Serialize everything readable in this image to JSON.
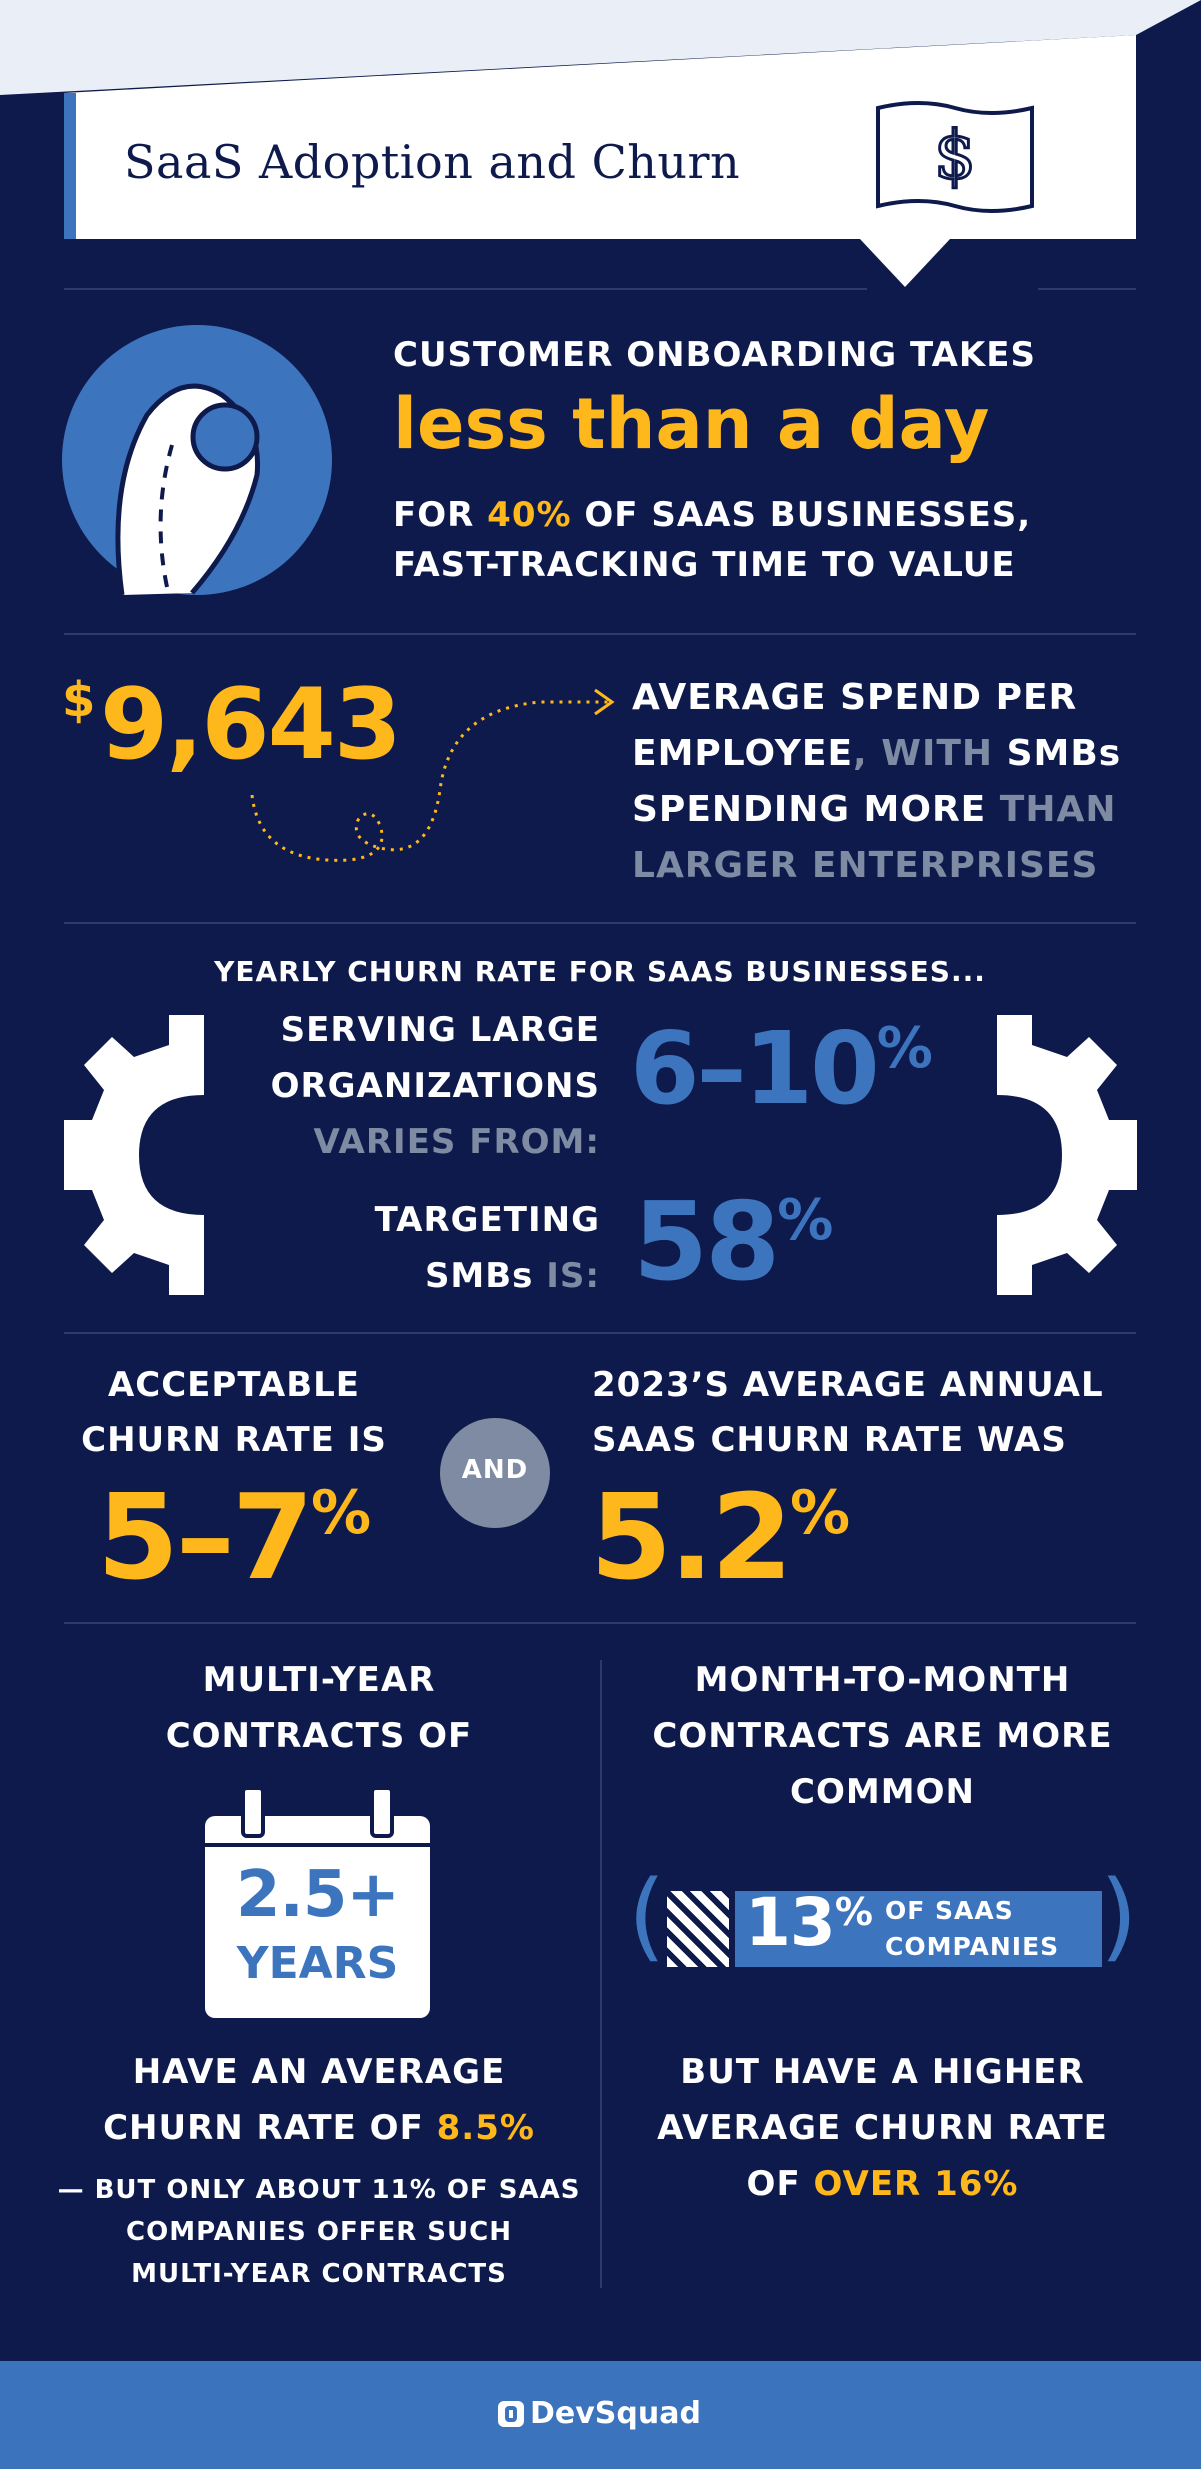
{
  "header": {
    "title": "SaaS Adoption and Churn"
  },
  "onboarding": {
    "line1": "CUSTOMER ONBOARDING TAKES",
    "highlight": "less than a day",
    "line3_prefix": "FOR ",
    "line3_pct": "40%",
    "line3_suffix": " OF SAAS BUSINESSES,",
    "line4": "FAST-TRACKING TIME TO VALUE"
  },
  "spend": {
    "currency": "$",
    "amount": "9,643",
    "line1": "AVERAGE SPEND PER",
    "line2_a": "EMPLOYEE",
    "line2_b": ", WITH ",
    "line2_c": "SMBs",
    "line3_a": "SPENDING MORE",
    "line3_b": " THAN",
    "line4": "LARGER ENTERPRISES"
  },
  "churn_yearly": {
    "heading": "YEARLY CHURN RATE FOR SAAS BUSINESSES...",
    "large_line1": "SERVING LARGE",
    "large_line2": "ORGANIZATIONS",
    "large_line3": "VARIES FROM:",
    "large_value": "6–10",
    "large_unit": "%",
    "smb_line1": "TARGETING",
    "smb_line2_a": "SMBs",
    "smb_line2_b": " IS:",
    "smb_value": "58",
    "smb_unit": "%"
  },
  "acceptable": {
    "line1": "ACCEPTABLE",
    "line2": "CHURN RATE IS",
    "value": "5–7",
    "unit": "%",
    "and": "AND",
    "avg_line1": "2023’S AVERAGE ANNUAL",
    "avg_line2": "SAAS CHURN RATE WAS",
    "avg_value": "5.2",
    "avg_unit": "%"
  },
  "multi_year": {
    "line1": "MULTI-YEAR",
    "line2": "CONTRACTS OF",
    "cal_value": "2.5+",
    "cal_unit": "YEARS",
    "churn_line1": "HAVE AN AVERAGE",
    "churn_line2_a": "CHURN RATE OF ",
    "churn_line2_b": "8.5%",
    "note1": "— BUT ONLY ABOUT 11% OF SAAS",
    "note2": "COMPANIES OFFER SUCH",
    "note3": "MULTI-YEAR CONTRACTS"
  },
  "monthly": {
    "line1": "MONTH-TO-MONTH",
    "line2": "CONTRACTS ARE MORE",
    "line3": "COMMON",
    "bar_value": "13",
    "bar_unit": "%",
    "bar_label1": "OF SAAS",
    "bar_label2": "COMPANIES",
    "bar_fraction": 0.13,
    "churn_line1": "BUT HAVE A HIGHER",
    "churn_line2": "AVERAGE CHURN RATE",
    "churn_line3_a": "OF ",
    "churn_line3_b": "OVER 16%"
  },
  "footer": {
    "brand": "DevSquad"
  },
  "colors": {
    "navy": "#0e1a4b",
    "blue": "#3d74be",
    "gold": "#ffb81c",
    "grey": "#7e8ba3"
  }
}
